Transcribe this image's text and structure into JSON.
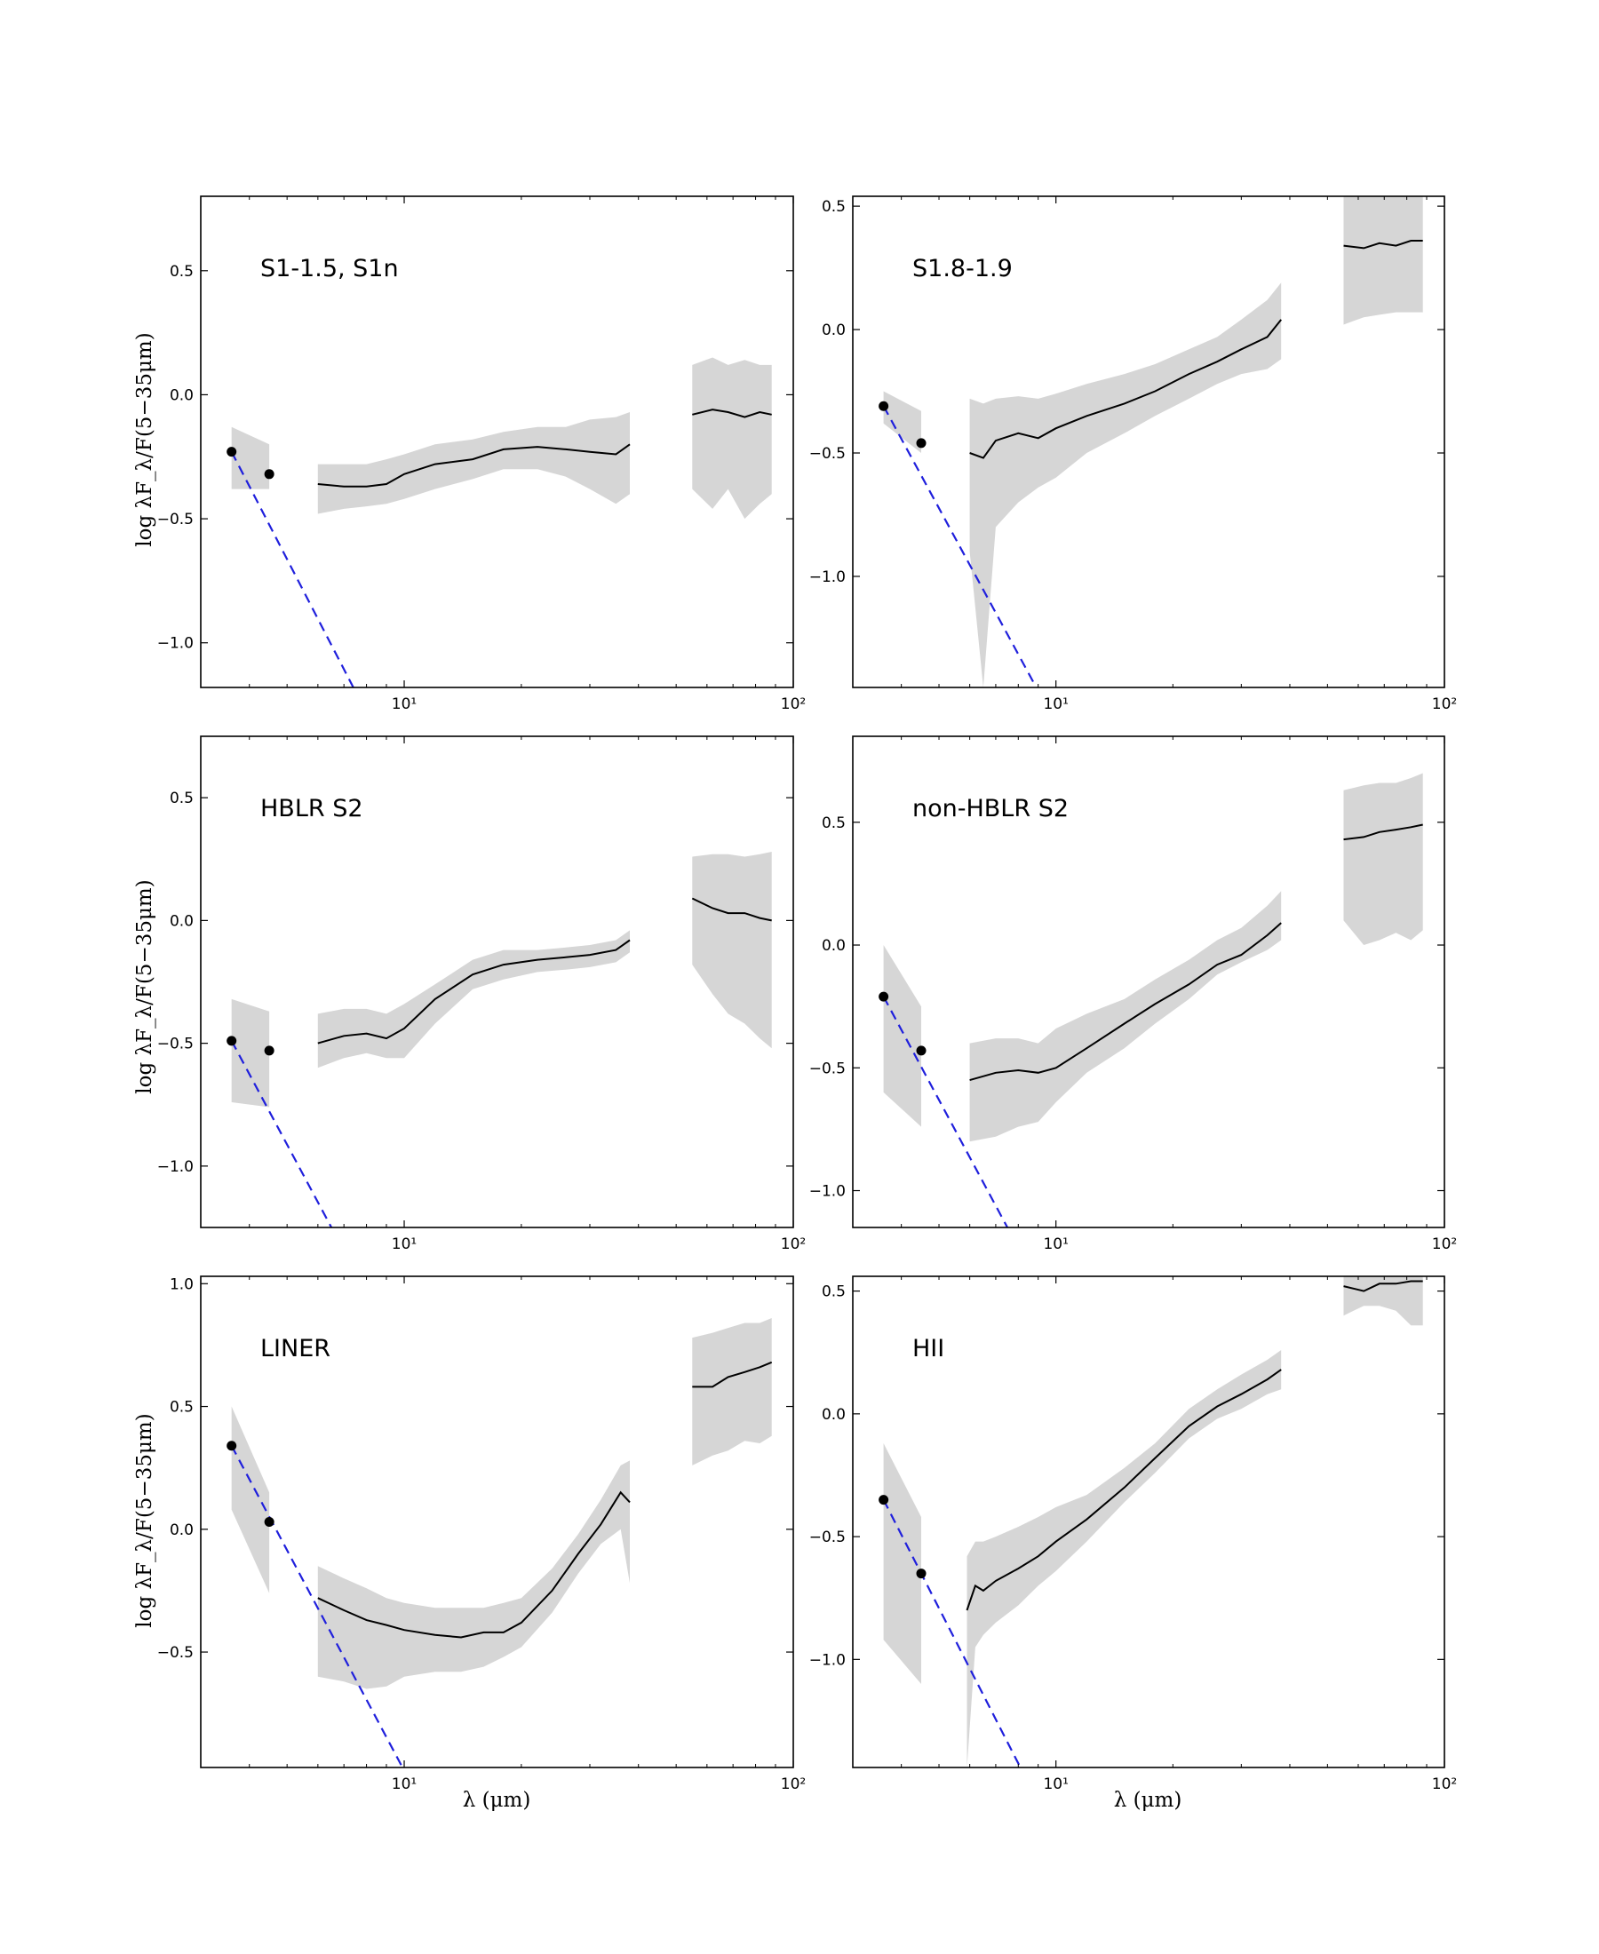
{
  "figure": {
    "xlabel": "λ (μm)",
    "ylabel": "log λF_λ/F(5−35μm)",
    "xaxis": {
      "scale": "log",
      "xlim": [
        3.0,
        100.0
      ],
      "tick_labels": [
        "10¹",
        "10²"
      ],
      "tick_values": [
        10,
        100
      ]
    }
  },
  "chart_data": [
    {
      "type": "line",
      "title": "S1-1.5, S1n",
      "ylim": [
        -1.18,
        0.8
      ],
      "yticks": [
        -1.0,
        -0.5,
        0.0,
        0.5
      ],
      "ytick_labels": [
        "−1.0",
        "−0.5",
        "0.0",
        "0.5"
      ],
      "points": [
        {
          "x": 3.6,
          "y": -0.23
        },
        {
          "x": 4.5,
          "y": -0.32
        }
      ],
      "dashed_line": {
        "x": [
          3.6,
          7.4
        ],
        "y": [
          -0.23,
          -1.18
        ]
      },
      "band_short": {
        "x": [
          3.6,
          4.5
        ],
        "lower": [
          -0.38,
          -0.38
        ],
        "upper": [
          -0.13,
          -0.2
        ]
      },
      "mir": {
        "x": [
          6.0,
          7.0,
          8.0,
          9.0,
          10.0,
          12.0,
          15.0,
          18.0,
          22.0,
          26.0,
          30.0,
          35.0,
          38.0
        ],
        "y": [
          -0.36,
          -0.37,
          -0.37,
          -0.36,
          -0.32,
          -0.28,
          -0.26,
          -0.22,
          -0.21,
          -0.22,
          -0.23,
          -0.24,
          -0.2
        ],
        "band_lower": [
          -0.48,
          -0.46,
          -0.45,
          -0.44,
          -0.42,
          -0.38,
          -0.34,
          -0.3,
          -0.3,
          -0.33,
          -0.38,
          -0.44,
          -0.4
        ],
        "band_upper": [
          -0.28,
          -0.28,
          -0.28,
          -0.26,
          -0.24,
          -0.2,
          -0.18,
          -0.15,
          -0.13,
          -0.13,
          -0.1,
          -0.09,
          -0.07
        ]
      },
      "fir": {
        "x": [
          55.0,
          62.0,
          68.0,
          75.0,
          82.0,
          88.0
        ],
        "y": [
          -0.08,
          -0.06,
          -0.07,
          -0.09,
          -0.07,
          -0.08
        ],
        "band_lower": [
          -0.38,
          -0.46,
          -0.38,
          -0.5,
          -0.44,
          -0.4
        ],
        "band_upper": [
          0.12,
          0.15,
          0.12,
          0.14,
          0.12,
          0.12
        ]
      }
    },
    {
      "type": "line",
      "title": "S1.8-1.9",
      "ylim": [
        -1.45,
        0.54
      ],
      "yticks": [
        -1.0,
        -0.5,
        0.0,
        0.5
      ],
      "ytick_labels": [
        "−1.0",
        "−0.5",
        "0.0",
        "0.5"
      ],
      "points": [
        {
          "x": 3.6,
          "y": -0.31
        },
        {
          "x": 4.5,
          "y": -0.46
        }
      ],
      "dashed_line": {
        "x": [
          3.6,
          8.9
        ],
        "y": [
          -0.31,
          -1.45
        ]
      },
      "band_short": {
        "x": [
          3.6,
          4.5
        ],
        "lower": [
          -0.38,
          -0.5
        ],
        "upper": [
          -0.25,
          -0.33
        ]
      },
      "mir": {
        "x": [
          6.0,
          6.5,
          7.0,
          8.0,
          9.0,
          10.0,
          12.0,
          15.0,
          18.0,
          22.0,
          26.0,
          30.0,
          35.0,
          38.0
        ],
        "y": [
          -0.5,
          -0.52,
          -0.45,
          -0.42,
          -0.44,
          -0.4,
          -0.35,
          -0.3,
          -0.25,
          -0.18,
          -0.13,
          -0.08,
          -0.03,
          0.04
        ],
        "band_lower": [
          -0.9,
          -1.45,
          -0.8,
          -0.7,
          -0.64,
          -0.6,
          -0.5,
          -0.42,
          -0.35,
          -0.28,
          -0.22,
          -0.18,
          -0.16,
          -0.12
        ],
        "band_upper": [
          -0.28,
          -0.3,
          -0.28,
          -0.27,
          -0.28,
          -0.26,
          -0.22,
          -0.18,
          -0.14,
          -0.08,
          -0.03,
          0.04,
          0.12,
          0.19
        ]
      },
      "fir": {
        "x": [
          55.0,
          62.0,
          68.0,
          75.0,
          82.0,
          88.0
        ],
        "y": [
          0.34,
          0.33,
          0.35,
          0.34,
          0.36,
          0.36
        ],
        "band_lower": [
          0.02,
          0.05,
          0.06,
          0.07,
          0.07,
          0.07
        ],
        "band_upper": [
          0.54,
          0.54,
          0.54,
          0.54,
          0.54,
          0.54
        ]
      }
    },
    {
      "type": "line",
      "title": "HBLR S2",
      "ylim": [
        -1.25,
        0.75
      ],
      "yticks": [
        -1.0,
        -0.5,
        0.0,
        0.5
      ],
      "ytick_labels": [
        "−1.0",
        "−0.5",
        "0.0",
        "0.5"
      ],
      "points": [
        {
          "x": 3.6,
          "y": -0.49
        },
        {
          "x": 4.5,
          "y": -0.53
        }
      ],
      "dashed_line": {
        "x": [
          3.6,
          6.5
        ],
        "y": [
          -0.49,
          -1.25
        ]
      },
      "band_short": {
        "x": [
          3.6,
          4.5
        ],
        "lower": [
          -0.74,
          -0.76
        ],
        "upper": [
          -0.32,
          -0.37
        ]
      },
      "mir": {
        "x": [
          6.0,
          7.0,
          8.0,
          9.0,
          10.0,
          12.0,
          15.0,
          18.0,
          22.0,
          26.0,
          30.0,
          35.0,
          38.0
        ],
        "y": [
          -0.5,
          -0.47,
          -0.46,
          -0.48,
          -0.44,
          -0.32,
          -0.22,
          -0.18,
          -0.16,
          -0.15,
          -0.14,
          -0.12,
          -0.08
        ],
        "band_lower": [
          -0.6,
          -0.56,
          -0.54,
          -0.56,
          -0.56,
          -0.42,
          -0.28,
          -0.24,
          -0.21,
          -0.2,
          -0.19,
          -0.17,
          -0.13
        ],
        "band_upper": [
          -0.38,
          -0.36,
          -0.36,
          -0.38,
          -0.34,
          -0.26,
          -0.16,
          -0.12,
          -0.12,
          -0.11,
          -0.1,
          -0.08,
          -0.04
        ]
      },
      "fir": {
        "x": [
          55.0,
          62.0,
          68.0,
          75.0,
          82.0,
          88.0
        ],
        "y": [
          0.09,
          0.05,
          0.03,
          0.03,
          0.01,
          0.0
        ],
        "band_lower": [
          -0.18,
          -0.3,
          -0.38,
          -0.42,
          -0.48,
          -0.52
        ],
        "band_upper": [
          0.26,
          0.27,
          0.27,
          0.26,
          0.27,
          0.28
        ]
      }
    },
    {
      "type": "line",
      "title": "non-HBLR S2",
      "ylim": [
        -1.15,
        0.85
      ],
      "yticks": [
        -1.0,
        -0.5,
        0.0,
        0.5
      ],
      "ytick_labels": [
        "−1.0",
        "−0.5",
        "0.0",
        "0.5"
      ],
      "points": [
        {
          "x": 3.6,
          "y": -0.21
        },
        {
          "x": 4.5,
          "y": -0.43
        }
      ],
      "dashed_line": {
        "x": [
          3.6,
          7.5
        ],
        "y": [
          -0.21,
          -1.15
        ]
      },
      "band_short": {
        "x": [
          3.6,
          4.5
        ],
        "lower": [
          -0.6,
          -0.74
        ],
        "upper": [
          0.0,
          -0.25
        ]
      },
      "mir": {
        "x": [
          6.0,
          7.0,
          8.0,
          9.0,
          10.0,
          12.0,
          15.0,
          18.0,
          22.0,
          26.0,
          30.0,
          35.0,
          38.0
        ],
        "y": [
          -0.55,
          -0.52,
          -0.51,
          -0.52,
          -0.5,
          -0.42,
          -0.32,
          -0.24,
          -0.16,
          -0.08,
          -0.04,
          0.04,
          0.09
        ],
        "band_lower": [
          -0.8,
          -0.78,
          -0.74,
          -0.72,
          -0.64,
          -0.52,
          -0.42,
          -0.32,
          -0.22,
          -0.12,
          -0.07,
          -0.02,
          0.02
        ],
        "band_upper": [
          -0.4,
          -0.38,
          -0.38,
          -0.4,
          -0.34,
          -0.28,
          -0.22,
          -0.14,
          -0.06,
          0.02,
          0.07,
          0.16,
          0.22
        ]
      },
      "fir": {
        "x": [
          55.0,
          62.0,
          68.0,
          75.0,
          82.0,
          88.0
        ],
        "y": [
          0.43,
          0.44,
          0.46,
          0.47,
          0.48,
          0.49
        ],
        "band_lower": [
          0.1,
          0.0,
          0.02,
          0.05,
          0.02,
          0.06
        ],
        "band_upper": [
          0.63,
          0.65,
          0.66,
          0.66,
          0.68,
          0.7
        ]
      }
    },
    {
      "type": "line",
      "title": "LINER",
      "ylim": [
        -0.97,
        1.03
      ],
      "yticks": [
        -0.5,
        0.0,
        0.5,
        1.0
      ],
      "ytick_labels": [
        "−0.5",
        "0.0",
        "0.5",
        "1.0"
      ],
      "points": [
        {
          "x": 3.6,
          "y": 0.34
        },
        {
          "x": 4.5,
          "y": 0.03
        }
      ],
      "dashed_line": {
        "x": [
          3.6,
          9.9
        ],
        "y": [
          0.34,
          -0.97
        ]
      },
      "band_short": {
        "x": [
          3.6,
          4.5
        ],
        "lower": [
          0.08,
          -0.26
        ],
        "upper": [
          0.5,
          0.15
        ]
      },
      "mir": {
        "x": [
          6.0,
          7.0,
          8.0,
          9.0,
          10.0,
          12.0,
          14.0,
          16.0,
          18.0,
          20.0,
          24.0,
          28.0,
          32.0,
          36.0,
          38.0
        ],
        "y": [
          -0.28,
          -0.33,
          -0.37,
          -0.39,
          -0.41,
          -0.43,
          -0.44,
          -0.42,
          -0.42,
          -0.38,
          -0.25,
          -0.1,
          0.02,
          0.15,
          0.11
        ],
        "band_lower": [
          -0.6,
          -0.62,
          -0.65,
          -0.64,
          -0.6,
          -0.58,
          -0.58,
          -0.56,
          -0.52,
          -0.48,
          -0.34,
          -0.18,
          -0.06,
          0.0,
          -0.22
        ],
        "band_upper": [
          -0.15,
          -0.2,
          -0.24,
          -0.28,
          -0.3,
          -0.32,
          -0.32,
          -0.32,
          -0.3,
          -0.28,
          -0.16,
          -0.02,
          0.12,
          0.26,
          0.28
        ]
      },
      "fir": {
        "x": [
          55.0,
          62.0,
          68.0,
          75.0,
          82.0,
          88.0
        ],
        "y": [
          0.58,
          0.58,
          0.62,
          0.64,
          0.66,
          0.68
        ],
        "band_lower": [
          0.26,
          0.3,
          0.32,
          0.36,
          0.35,
          0.38
        ],
        "band_upper": [
          0.78,
          0.8,
          0.82,
          0.84,
          0.84,
          0.86
        ]
      }
    },
    {
      "type": "line",
      "title": "HII",
      "ylim": [
        -1.44,
        0.56
      ],
      "yticks": [
        -1.0,
        -0.5,
        0.0,
        0.5
      ],
      "ytick_labels": [
        "−1.0",
        "−0.5",
        "0.0",
        "0.5"
      ],
      "points": [
        {
          "x": 3.6,
          "y": -0.35
        },
        {
          "x": 4.5,
          "y": -0.65
        }
      ],
      "dashed_line": {
        "x": [
          3.6,
          8.1
        ],
        "y": [
          -0.35,
          -1.44
        ]
      },
      "band_short": {
        "x": [
          3.6,
          4.5
        ],
        "lower": [
          -0.92,
          -1.1
        ],
        "upper": [
          -0.12,
          -0.42
        ]
      },
      "mir": {
        "x": [
          5.9,
          6.2,
          6.5,
          7.0,
          8.0,
          9.0,
          10.0,
          12.0,
          15.0,
          18.0,
          22.0,
          26.0,
          30.0,
          35.0,
          38.0
        ],
        "y": [
          -0.8,
          -0.7,
          -0.72,
          -0.68,
          -0.63,
          -0.58,
          -0.52,
          -0.43,
          -0.3,
          -0.18,
          -0.05,
          0.03,
          0.08,
          0.14,
          0.18
        ],
        "band_lower": [
          -1.44,
          -0.95,
          -0.9,
          -0.85,
          -0.78,
          -0.7,
          -0.64,
          -0.52,
          -0.36,
          -0.24,
          -0.1,
          -0.02,
          0.02,
          0.08,
          0.1
        ],
        "band_upper": [
          -0.58,
          -0.52,
          -0.52,
          -0.5,
          -0.46,
          -0.42,
          -0.38,
          -0.33,
          -0.22,
          -0.12,
          0.02,
          0.1,
          0.16,
          0.22,
          0.26
        ]
      },
      "fir": {
        "x": [
          55.0,
          62.0,
          68.0,
          75.0,
          82.0,
          88.0
        ],
        "y": [
          0.52,
          0.5,
          0.53,
          0.53,
          0.54,
          0.54
        ],
        "band_lower": [
          0.4,
          0.44,
          0.44,
          0.42,
          0.36,
          0.36
        ],
        "band_upper": [
          0.56,
          0.56,
          0.56,
          0.56,
          0.56,
          0.56
        ]
      }
    }
  ]
}
